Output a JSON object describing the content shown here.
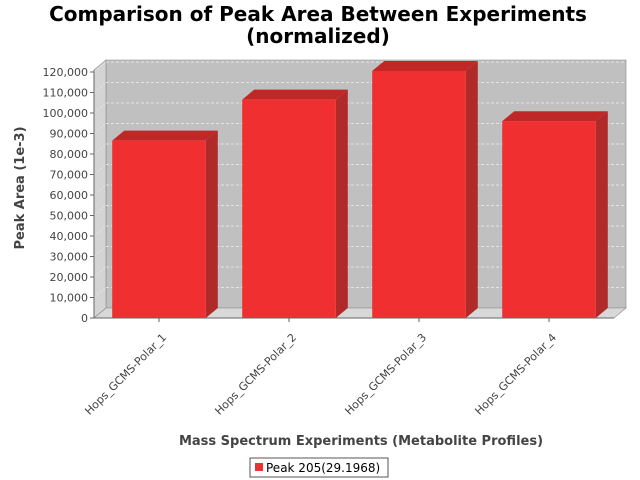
{
  "chart_data": {
    "type": "bar",
    "title": "Comparison of Peak Area Between Experiments",
    "subtitle": "(normalized)",
    "xlabel": "Mass Spectrum Experiments (Metabolite Profiles)",
    "ylabel": "Peak Area (1e-3)",
    "categories": [
      "Hops_GCMS-Polar_1",
      "Hops_GCMS-Polar_2",
      "Hops_GCMS-Polar_3",
      "Hops_GCMS-Polar_4"
    ],
    "series": [
      {
        "name": "Peak 205(29.1968)",
        "values": [
          86500,
          106500,
          120500,
          96000
        ],
        "color": "#f03030"
      }
    ],
    "ylim": [
      0,
      120000
    ],
    "yticks": [
      0,
      10000,
      20000,
      30000,
      40000,
      50000,
      60000,
      70000,
      80000,
      90000,
      100000,
      110000,
      120000
    ],
    "ytick_labels": [
      "0",
      "10,000",
      "20,000",
      "30,000",
      "40,000",
      "50,000",
      "60,000",
      "70,000",
      "80,000",
      "90,000",
      "100,000",
      "110,000",
      "120,000"
    ],
    "grid": true,
    "style": "3d",
    "legend_position": "bottom-center",
    "colors": {
      "plot_background": "#c0c0c0",
      "floor": "#d8d8d8",
      "bar_top": "#c02828",
      "bar_side": "#b02a2a"
    }
  }
}
